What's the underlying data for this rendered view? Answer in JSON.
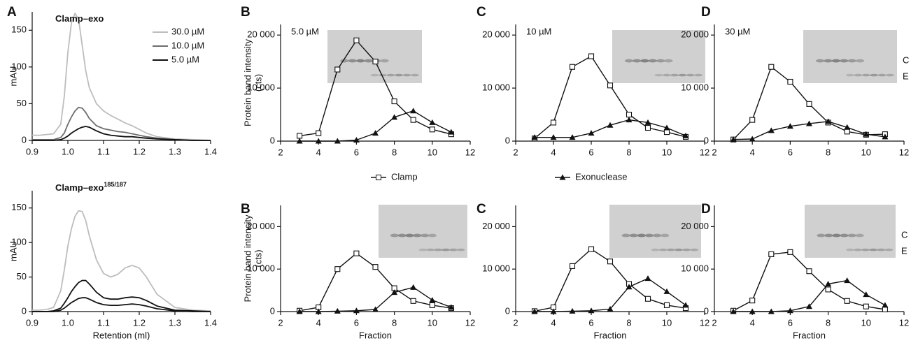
{
  "chart_data": [
    {
      "type": "chromatogram",
      "panel": "A",
      "title": "Clamp–exo",
      "ylabel": [
        "mAU"
      ],
      "x": [
        0.9,
        0.92,
        0.94,
        0.96,
        0.98,
        0.99,
        1.0,
        1.01,
        1.02,
        1.03,
        1.04,
        1.05,
        1.06,
        1.08,
        1.1,
        1.12,
        1.14,
        1.16,
        1.18,
        1.2,
        1.22,
        1.25,
        1.3,
        1.35,
        1.4
      ],
      "series": [
        {
          "name": "30.0 µM",
          "color": "#bdbdbd",
          "values": [
            7,
            7,
            8,
            9,
            22,
            60,
            120,
            160,
            173,
            165,
            130,
            95,
            72,
            50,
            40,
            34,
            29,
            24,
            20,
            15,
            10,
            5,
            2,
            1,
            0
          ]
        },
        {
          "name": "10.0 µM",
          "color": "#6e6e6e",
          "values": [
            1,
            1,
            1,
            1,
            4,
            10,
            22,
            32,
            40,
            45,
            44,
            38,
            30,
            20,
            16,
            14,
            12,
            11,
            9,
            7,
            5,
            3,
            1,
            0,
            0
          ]
        },
        {
          "name": "5.0 µM",
          "color": "#111111",
          "values": [
            0,
            0,
            0,
            0,
            1,
            3,
            6,
            10,
            13,
            16,
            18,
            19,
            18,
            13,
            9,
            7,
            6,
            5,
            5,
            4,
            3,
            2,
            1,
            0,
            0
          ]
        }
      ],
      "xlim": [
        0.9,
        1.4
      ],
      "xticks": [
        0.9,
        {
          "value": 1,
          "label": "1.0"
        },
        1.1,
        1.2,
        1.3,
        1.4
      ],
      "ylim": [
        0,
        175
      ],
      "yticks": [
        0,
        50,
        100,
        150
      ]
    },
    {
      "type": "fraction",
      "panel": "B",
      "annotation": "5.0 µM",
      "ylabel": [
        "Protein band intensity",
        "(cts)"
      ],
      "x": [
        3,
        4,
        5,
        6,
        7,
        8,
        9,
        10,
        11
      ],
      "series": [
        {
          "name": "Clamp",
          "marker": "square-open",
          "color": "#111111",
          "values": [
            1000,
            1500,
            13500,
            19000,
            15000,
            7500,
            4000,
            2200,
            1300
          ]
        },
        {
          "name": "Exonuclease",
          "marker": "triangle",
          "color": "#111111",
          "values": [
            0,
            0,
            0,
            200,
            1500,
            4500,
            5700,
            3500,
            1700
          ]
        }
      ],
      "xlim": [
        2,
        12
      ],
      "xticks": [
        2,
        4,
        6,
        8,
        10,
        12
      ],
      "ylim": [
        0,
        22000
      ],
      "yticks": [
        0,
        {
          "value": 10000,
          "label": "10 000"
        },
        {
          "value": 20000,
          "label": "20 000"
        }
      ]
    },
    {
      "type": "fraction",
      "panel": "C",
      "annotation": "10 µM",
      "x": [
        3,
        4,
        5,
        6,
        7,
        8,
        9,
        10,
        11
      ],
      "series": [
        {
          "marker": "square-open",
          "color": "#111111",
          "values": [
            500,
            3500,
            14000,
            16000,
            10500,
            5000,
            2500,
            1700,
            800
          ]
        },
        {
          "marker": "triangle",
          "color": "#111111",
          "values": [
            700,
            700,
            700,
            1500,
            3000,
            4000,
            3500,
            2500,
            1000
          ]
        }
      ],
      "xlim": [
        2,
        12
      ],
      "xticks": [
        2,
        4,
        6,
        8,
        10,
        12
      ],
      "ylim": [
        0,
        22000
      ],
      "yticks": [
        0,
        {
          "value": 10000,
          "label": "10 000"
        },
        {
          "value": 20000,
          "label": "20 000"
        }
      ]
    },
    {
      "type": "fraction",
      "panel": "D",
      "annotation": "30 µM",
      "lane_labels": [
        "C",
        "E"
      ],
      "x": [
        3,
        4,
        5,
        6,
        7,
        8,
        9,
        10,
        11
      ],
      "series": [
        {
          "marker": "square-open",
          "color": "#111111",
          "values": [
            300,
            4000,
            14000,
            11200,
            7000,
            3500,
            1800,
            1200,
            1300
          ]
        },
        {
          "marker": "triangle",
          "color": "#111111",
          "values": [
            300,
            400,
            2000,
            2800,
            3300,
            3700,
            2600,
            1300,
            800
          ]
        }
      ],
      "xlim": [
        2,
        12
      ],
      "xticks": [
        2,
        4,
        6,
        8,
        10,
        12
      ],
      "ylim": [
        0,
        22000
      ],
      "yticks": [
        0,
        {
          "value": 10000,
          "label": "10 000"
        },
        {
          "value": 20000,
          "label": "20 000"
        }
      ]
    },
    {
      "type": "chromatogram",
      "title": "Clamp–exo",
      "title_sup": "185/187",
      "ylabel": [
        "mAU"
      ],
      "xlabel": "Retention (ml)",
      "x": [
        0.9,
        0.92,
        0.94,
        0.96,
        0.98,
        0.99,
        1.0,
        1.01,
        1.02,
        1.03,
        1.04,
        1.05,
        1.06,
        1.08,
        1.1,
        1.12,
        1.14,
        1.16,
        1.18,
        1.2,
        1.22,
        1.25,
        1.3,
        1.35,
        1.4
      ],
      "series": [
        {
          "color": "#bdbdbd",
          "values": [
            2,
            2,
            3,
            6,
            30,
            60,
            95,
            120,
            138,
            146,
            145,
            132,
            110,
            75,
            55,
            50,
            54,
            63,
            67,
            63,
            50,
            25,
            6,
            2,
            1
          ]
        },
        {
          "color": "#111111",
          "values": [
            0,
            0,
            0,
            1,
            5,
            12,
            20,
            29,
            36,
            42,
            45,
            45,
            40,
            28,
            20,
            18,
            18,
            20,
            21,
            20,
            16,
            8,
            2,
            1,
            0
          ]
        },
        {
          "color": "#111111",
          "values": [
            0,
            0,
            0,
            0,
            2,
            5,
            9,
            13,
            16,
            19,
            20,
            20,
            18,
            13,
            10,
            9,
            9,
            10,
            11,
            10,
            8,
            4,
            1,
            0,
            0
          ]
        }
      ],
      "xlim": [
        0.9,
        1.4
      ],
      "xticks": [
        0.9,
        {
          "value": 1,
          "label": "1.0"
        },
        1.1,
        1.2,
        1.3,
        1.4
      ],
      "ylim": [
        0,
        175
      ],
      "yticks": [
        0,
        50,
        100,
        150
      ]
    },
    {
      "type": "fraction",
      "panel": "B",
      "ylabel": [
        "Protein band intensity",
        "(cts)"
      ],
      "xlabel": "Fraction",
      "x": [
        3,
        4,
        5,
        6,
        7,
        8,
        9,
        10,
        11
      ],
      "series": [
        {
          "marker": "square-open",
          "color": "#111111",
          "values": [
            200,
            1000,
            10000,
            13700,
            10500,
            5500,
            2500,
            1500,
            800
          ]
        },
        {
          "marker": "triangle",
          "color": "#111111",
          "values": [
            0,
            0,
            100,
            200,
            500,
            4500,
            5700,
            2700,
            1000
          ]
        }
      ],
      "xlim": [
        2,
        12
      ],
      "xticks": [
        2,
        4,
        6,
        8,
        10,
        12
      ],
      "ylim": [
        0,
        25000
      ],
      "yticks": [
        0,
        {
          "value": 10000,
          "label": "10 000"
        },
        {
          "value": 20000,
          "label": "20 000"
        }
      ]
    },
    {
      "type": "fraction",
      "panel": "C",
      "xlabel": "Fraction",
      "x": [
        3,
        4,
        5,
        6,
        7,
        8,
        9,
        10,
        11
      ],
      "series": [
        {
          "marker": "square-open",
          "color": "#111111",
          "values": [
            100,
            1000,
            10700,
            14700,
            11800,
            6500,
            3000,
            1500,
            800
          ]
        },
        {
          "marker": "triangle",
          "color": "#111111",
          "values": [
            0,
            0,
            100,
            200,
            600,
            5800,
            7800,
            4700,
            1500
          ]
        }
      ],
      "xlim": [
        2,
        12
      ],
      "xticks": [
        2,
        4,
        6,
        8,
        10,
        12
      ],
      "ylim": [
        0,
        25000
      ],
      "yticks": [
        0,
        {
          "value": 10000,
          "label": "10 000"
        },
        {
          "value": 20000,
          "label": "20 000"
        }
      ]
    },
    {
      "type": "fraction",
      "panel": "D",
      "xlabel": "Fraction",
      "lane_labels": [
        "C",
        "E"
      ],
      "x": [
        3,
        4,
        5,
        6,
        7,
        8,
        9,
        10,
        11
      ],
      "series": [
        {
          "marker": "square-open",
          "color": "#111111",
          "values": [
            200,
            2600,
            13500,
            14000,
            9500,
            5200,
            2500,
            1200,
            500
          ]
        },
        {
          "marker": "triangle",
          "color": "#111111",
          "values": [
            0,
            0,
            0,
            200,
            1200,
            6500,
            7300,
            4000,
            1500
          ]
        }
      ],
      "xlim": [
        2,
        12
      ],
      "xticks": [
        2,
        4,
        6,
        8,
        10,
        12
      ],
      "ylim": [
        0,
        25000
      ],
      "yticks": [
        0,
        {
          "value": 10000,
          "label": "10 000"
        },
        {
          "value": 20000,
          "label": "20 000"
        }
      ]
    }
  ]
}
